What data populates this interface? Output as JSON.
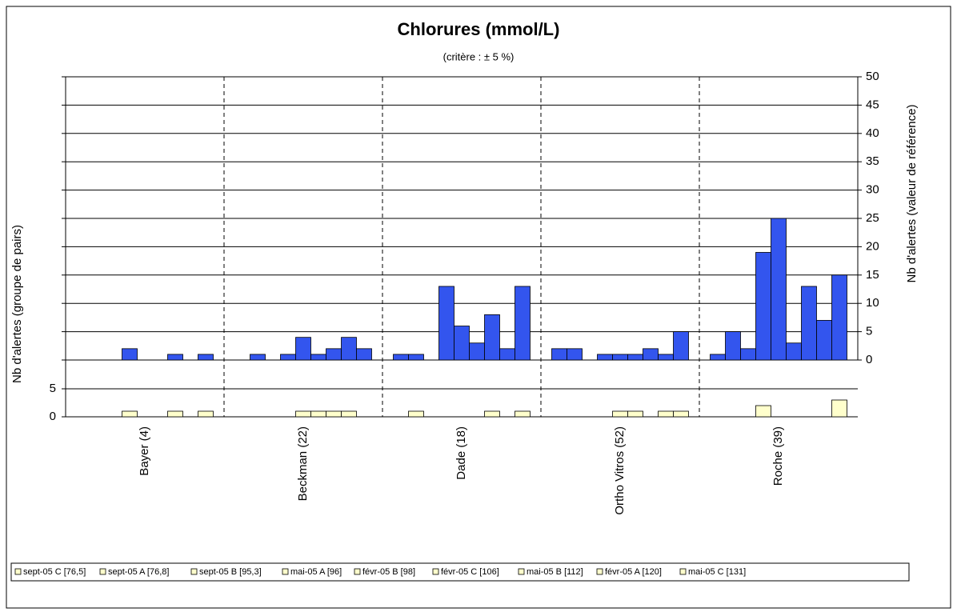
{
  "chart_data": {
    "type": "bar",
    "title": "Chlorures (mmol/L)",
    "subtitle": "(critère : ± 5 %)",
    "y_label": "Nb d'alertes (groupe de pairs)",
    "y2_label": "Nb d'alertes (valeur de référence)",
    "categories": [
      "Bayer (4)",
      "Beckman (22)",
      "Dade (18)",
      "Ortho Vitros (52)",
      "Roche (39)"
    ],
    "ylim": [
      0,
      10
    ],
    "yticks": [
      0,
      5
    ],
    "y2lim": [
      0,
      50
    ],
    "y2ticks": [
      0,
      5,
      10,
      15,
      20,
      25,
      30,
      35,
      40,
      45,
      50
    ],
    "color": "#ffffcc",
    "y2_color": "#3355ee",
    "grid": true,
    "series": [
      {
        "name": "sept-05 C [76,5]",
        "values": [
          null,
          null,
          null,
          null,
          null
        ],
        "y2_values": [
          null,
          null,
          1,
          2,
          1
        ]
      },
      {
        "name": "sept-05 A [76,8]",
        "values": [
          null,
          null,
          1,
          null,
          null
        ],
        "y2_values": [
          null,
          1,
          1,
          2,
          5
        ]
      },
      {
        "name": "sept-05 B [95,3]",
        "values": [
          null,
          null,
          null,
          null,
          null
        ],
        "y2_values": [
          null,
          null,
          null,
          null,
          2
        ]
      },
      {
        "name": "mai-05 A [96]",
        "values": [
          1,
          null,
          null,
          null,
          2
        ],
        "y2_values": [
          2,
          1,
          13,
          1,
          19
        ]
      },
      {
        "name": "févr-05 B [98]",
        "values": [
          null,
          1,
          null,
          1,
          null
        ],
        "y2_values": [
          null,
          4,
          6,
          1,
          25
        ]
      },
      {
        "name": "févr-05 C [106]",
        "values": [
          null,
          1,
          null,
          1,
          null
        ],
        "y2_values": [
          null,
          1,
          3,
          1,
          3
        ]
      },
      {
        "name": "mai-05 B [112]",
        "values": [
          1,
          1,
          1,
          null,
          null
        ],
        "y2_values": [
          1,
          2,
          8,
          2,
          13
        ]
      },
      {
        "name": "févr-05 A [120]",
        "values": [
          null,
          1,
          null,
          1,
          null
        ],
        "y2_values": [
          null,
          4,
          2,
          1,
          7
        ]
      },
      {
        "name": "mai-05 C [131]",
        "values": [
          1,
          null,
          1,
          1,
          3
        ],
        "y2_values": [
          1,
          2,
          13,
          5,
          15
        ]
      }
    ]
  }
}
